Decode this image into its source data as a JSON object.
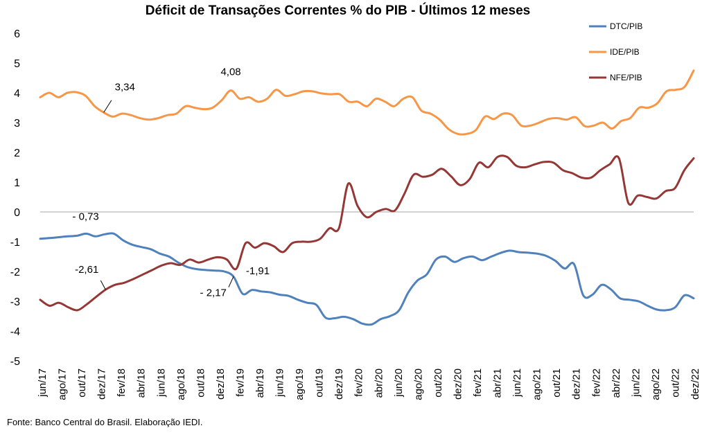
{
  "chart_data": {
    "type": "line",
    "title": "Déficit de Transações Correntes % do PIB - Últimos 12 meses",
    "xlabel": "",
    "ylabel": "",
    "ylim": [
      -5,
      6
    ],
    "yticks": [
      "6",
      "5",
      "4",
      "3",
      "2",
      "1",
      "0",
      "-1",
      "-2",
      "-3",
      "-4",
      "-5"
    ],
    "grid": false,
    "legend_position": "top-right",
    "x_tick_labels": [
      "jun/17",
      "ago/17",
      "out/17",
      "dez/17",
      "fev/18",
      "abr/18",
      "jun/18",
      "ago/18",
      "out/18",
      "dez/18",
      "fev/19",
      "abr/19",
      "jun/19",
      "ago/19",
      "out/19",
      "dez/19",
      "fev/20",
      "abr/20",
      "jun/20",
      "ago/20",
      "out/20",
      "dez/20",
      "fev/21",
      "abr/21",
      "jun/21",
      "ago/21",
      "out/21",
      "dez/21",
      "fev/22",
      "abr/22",
      "jun/22",
      "ago/22",
      "out/22",
      "dez/22"
    ],
    "series": [
      {
        "name": "DTC/PIB",
        "color": "#4f81bd",
        "values": [
          -0.9,
          -0.88,
          -0.85,
          -0.82,
          -0.8,
          -0.73,
          -0.82,
          -0.75,
          -0.73,
          -0.95,
          -1.1,
          -1.18,
          -1.25,
          -1.4,
          -1.5,
          -1.7,
          -1.85,
          -1.92,
          -1.95,
          -1.97,
          -2.0,
          -2.17,
          -2.75,
          -2.62,
          -2.67,
          -2.7,
          -2.78,
          -2.82,
          -2.95,
          -3.05,
          -3.12,
          -3.55,
          -3.57,
          -3.52,
          -3.6,
          -3.75,
          -3.78,
          -3.6,
          -3.5,
          -3.3,
          -2.7,
          -2.3,
          -2.1,
          -1.6,
          -1.5,
          -1.68,
          -1.55,
          -1.5,
          -1.62,
          -1.5,
          -1.38,
          -1.3,
          -1.35,
          -1.37,
          -1.4,
          -1.48,
          -1.65,
          -1.9,
          -1.75,
          -2.8,
          -2.78,
          -2.45,
          -2.6,
          -2.9,
          -2.95,
          -3.0,
          -3.15,
          -3.28,
          -3.3,
          -3.2,
          -2.8,
          -2.9
        ]
      },
      {
        "name": "IDE/PIB",
        "color": "#f79646",
        "values": [
          3.85,
          4.0,
          3.85,
          4.0,
          4.02,
          3.9,
          3.55,
          3.34,
          3.2,
          3.3,
          3.25,
          3.15,
          3.1,
          3.15,
          3.25,
          3.3,
          3.55,
          3.5,
          3.45,
          3.5,
          3.75,
          4.08,
          3.8,
          3.85,
          3.7,
          3.8,
          4.1,
          3.9,
          3.95,
          4.05,
          4.05,
          3.98,
          3.95,
          3.95,
          3.7,
          3.7,
          3.55,
          3.8,
          3.7,
          3.55,
          3.8,
          3.85,
          3.4,
          3.3,
          3.1,
          2.78,
          2.62,
          2.62,
          2.75,
          3.2,
          3.12,
          3.3,
          3.25,
          2.9,
          2.9,
          3.0,
          3.12,
          3.15,
          3.1,
          3.18,
          2.88,
          2.9,
          3.0,
          2.8,
          3.05,
          3.15,
          3.5,
          3.5,
          3.65,
          4.05,
          4.1,
          4.2,
          4.75
        ]
      },
      {
        "name": "NFE/PIB",
        "color": "#953735",
        "values": [
          -2.95,
          -3.15,
          -3.05,
          -3.2,
          -3.3,
          -3.1,
          -2.85,
          -2.61,
          -2.45,
          -2.38,
          -2.25,
          -2.1,
          -1.95,
          -1.8,
          -1.72,
          -1.78,
          -1.6,
          -1.7,
          -1.6,
          -1.52,
          -1.6,
          -1.91,
          -1.05,
          -1.2,
          -1.05,
          -1.15,
          -1.35,
          -1.05,
          -1.0,
          -1.0,
          -0.9,
          -0.55,
          -0.55,
          0.95,
          0.2,
          -0.18,
          0.0,
          0.1,
          0.05,
          0.6,
          1.25,
          1.18,
          1.25,
          1.45,
          1.2,
          0.9,
          1.1,
          1.65,
          1.5,
          1.85,
          1.85,
          1.55,
          1.5,
          1.6,
          1.68,
          1.65,
          1.4,
          1.3,
          1.15,
          1.15,
          1.4,
          1.6,
          1.8,
          0.3,
          0.55,
          0.5,
          0.45,
          0.7,
          0.8,
          1.4,
          1.8
        ]
      }
    ],
    "annotations": [
      {
        "text": "3,34",
        "series": "IDE/PIB",
        "index": 7,
        "value": 3.34
      },
      {
        "text": "4,08",
        "series": "IDE/PIB",
        "index": 21,
        "value": 4.08
      },
      {
        "text": "-  0,73",
        "series": "DTC/PIB",
        "index": 5,
        "value": -0.73
      },
      {
        "text": "-2,61",
        "series": "NFE/PIB",
        "index": 7,
        "value": -2.61
      },
      {
        "text": "-1,91",
        "series": "NFE/PIB",
        "index": 21,
        "value": -1.91
      },
      {
        "text": "-  2,17",
        "series": "DTC/PIB",
        "index": 21,
        "value": -2.17
      }
    ]
  },
  "footer": {
    "source": "Fonte: Banco Central do Brasil. Elaboração IEDI."
  }
}
